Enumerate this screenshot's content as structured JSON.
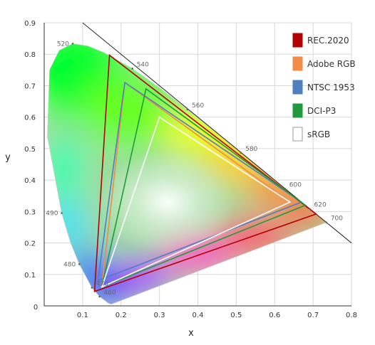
{
  "chart_data": {
    "type": "scatter",
    "title": "",
    "xlabel": "x",
    "ylabel": "y",
    "xlim": [
      0,
      0.8
    ],
    "ylim": [
      0,
      0.9
    ],
    "x_ticks": [
      {
        "value": 0,
        "label": "0"
      },
      {
        "value": 0.1,
        "label": "0.1"
      },
      {
        "value": 0.2,
        "label": "0.2"
      },
      {
        "value": 0.3,
        "label": "0.3"
      },
      {
        "value": 0.4,
        "label": "0.4"
      },
      {
        "value": 0.5,
        "label": "0.5"
      },
      {
        "value": 0.6,
        "label": "0.6"
      },
      {
        "value": 0.7,
        "label": "0.7"
      },
      {
        "value": 0.8,
        "label": "0.8"
      }
    ],
    "y_ticks": [
      {
        "value": 0.1,
        "label": "0.1"
      },
      {
        "value": 0.2,
        "label": "0.2"
      },
      {
        "value": 0.3,
        "label": "0.3"
      },
      {
        "value": 0.4,
        "label": "0.4"
      },
      {
        "value": 0.5,
        "label": "0.5"
      },
      {
        "value": 0.6,
        "label": "0.6"
      },
      {
        "value": 0.7,
        "label": "0.7"
      },
      {
        "value": 0.8,
        "label": "0.8"
      },
      {
        "value": 0.9,
        "label": "0.9"
      }
    ],
    "grid": true,
    "legend_position": "top-right",
    "spectral_locus": [
      [
        0.1741,
        0.005
      ],
      [
        0.1666,
        0.0089
      ],
      [
        0.144,
        0.0297
      ],
      [
        0.1241,
        0.0578
      ],
      [
        0.0913,
        0.1327
      ],
      [
        0.0687,
        0.2007
      ],
      [
        0.0454,
        0.295
      ],
      [
        0.0082,
        0.5384
      ],
      [
        0.0139,
        0.7502
      ],
      [
        0.0389,
        0.812
      ],
      [
        0.0743,
        0.8338
      ],
      [
        0.1142,
        0.8262
      ],
      [
        0.1547,
        0.8059
      ],
      [
        0.2296,
        0.7543
      ],
      [
        0.3016,
        0.6923
      ],
      [
        0.3731,
        0.6245
      ],
      [
        0.4441,
        0.5547
      ],
      [
        0.5125,
        0.4866
      ],
      [
        0.5752,
        0.4242
      ],
      [
        0.627,
        0.3725
      ],
      [
        0.6658,
        0.334
      ],
      [
        0.6915,
        0.3083
      ],
      [
        0.7079,
        0.292
      ],
      [
        0.7347,
        0.2653
      ]
    ],
    "wavelength_labels": [
      {
        "label": "460",
        "x": 0.144,
        "y": 0.0297
      },
      {
        "label": "470",
        "x": 0.1241,
        "y": 0.0578
      },
      {
        "label": "480",
        "x": 0.0913,
        "y": 0.1327
      },
      {
        "label": "490",
        "x": 0.0454,
        "y": 0.295
      },
      {
        "label": "520",
        "x": 0.0743,
        "y": 0.8338
      },
      {
        "label": "540",
        "x": 0.2296,
        "y": 0.7543
      },
      {
        "label": "560",
        "x": 0.3731,
        "y": 0.6245
      },
      {
        "label": "580",
        "x": 0.5125,
        "y": 0.4866
      },
      {
        "label": "600",
        "x": 0.627,
        "y": 0.3725
      },
      {
        "label": "620",
        "x": 0.6915,
        "y": 0.3083
      },
      {
        "label": "700",
        "x": 0.7347,
        "y": 0.2653
      }
    ],
    "series": [
      {
        "name": "REC.2020",
        "color": "#b30000",
        "points": [
          [
            0.708,
            0.292
          ],
          [
            0.17,
            0.797
          ],
          [
            0.131,
            0.046
          ]
        ]
      },
      {
        "name": "Adobe RGB",
        "color": "#f08c46",
        "points": [
          [
            0.64,
            0.33
          ],
          [
            0.21,
            0.71
          ],
          [
            0.15,
            0.06
          ]
        ]
      },
      {
        "name": "NTSC 1953",
        "color": "#4f7fbf",
        "points": [
          [
            0.67,
            0.33
          ],
          [
            0.21,
            0.71
          ],
          [
            0.14,
            0.08
          ]
        ]
      },
      {
        "name": "DCI-P3",
        "color": "#1f9a3c",
        "points": [
          [
            0.68,
            0.32
          ],
          [
            0.265,
            0.69
          ],
          [
            0.15,
            0.06
          ]
        ]
      },
      {
        "name": "sRGB",
        "color": "#ffffff",
        "points": [
          [
            0.64,
            0.33
          ],
          [
            0.3,
            0.6
          ],
          [
            0.15,
            0.06
          ]
        ]
      }
    ]
  }
}
